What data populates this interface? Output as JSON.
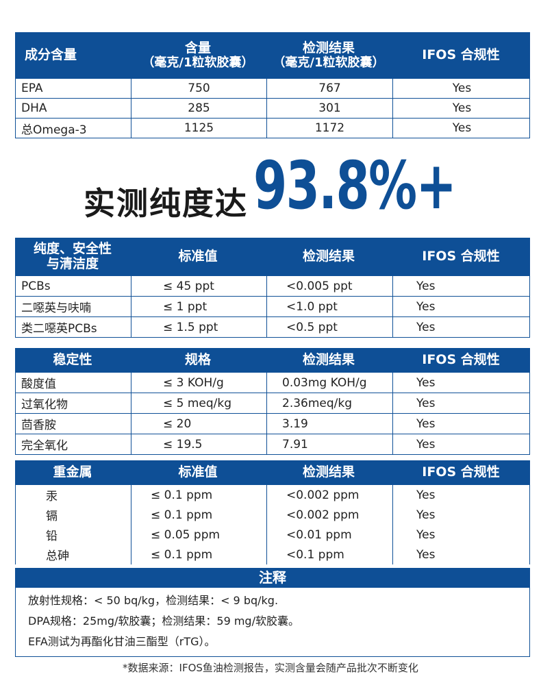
{
  "tables": [
    {
      "headers": [
        "成分含量",
        "含量",
        "（毫克/1粒软胶囊）",
        "检测结果",
        "（毫克/1粒软胶囊）",
        "IFOS 合规性"
      ],
      "rows": [
        [
          "EPA",
          "750",
          "767",
          "Yes"
        ],
        [
          "DHA",
          "285",
          "301",
          "Yes"
        ],
        [
          "总Omega-3",
          "1125",
          "1172",
          "Yes"
        ]
      ]
    },
    {
      "headers": [
        "纯度、安全性",
        "与清洁度",
        "标准值",
        "检测结果",
        "IFOS 合规性"
      ],
      "rows": [
        [
          "PCBs",
          "≤ 45 ppt",
          "<0.005 ppt",
          "Yes"
        ],
        [
          "二噁英与呋喃",
          "≤ 1 ppt",
          "<1.0 ppt",
          "Yes"
        ],
        [
          "类二噁英PCBs",
          "≤ 1.5 ppt",
          "<0.5 ppt",
          "Yes"
        ]
      ]
    },
    {
      "headers": [
        "稳定性",
        "规格",
        "检测结果",
        "IFOS 合规性"
      ],
      "rows": [
        [
          "酸度值",
          "≤ 3 KOH/g",
          "0.03mg KOH/g",
          "Yes"
        ],
        [
          "过氧化物",
          "≤ 5 meq/kg",
          "2.36meq/kg",
          "Yes"
        ],
        [
          "茴香胺",
          "≤ 20",
          "3.19",
          "Yes"
        ],
        [
          "完全氧化",
          "≤ 19.5",
          "7.91",
          "Yes"
        ]
      ]
    },
    {
      "headers": [
        "重金属",
        "标准值",
        "检测结果",
        "IFOS 合规性"
      ],
      "rows": [
        [
          "汞",
          "≤ 0.1 ppm",
          "<0.002 ppm",
          "Yes"
        ],
        [
          "镉",
          "≤ 0.1 ppm",
          "<0.002 ppm",
          "Yes"
        ],
        [
          "铅",
          "≤ 0.05 ppm",
          "<0.01 ppm",
          "Yes"
        ],
        [
          "总砷",
          "≤ 0.1 ppm",
          "<0.1 ppm",
          "Yes"
        ]
      ]
    }
  ],
  "hero": {
    "text": "实测纯度达",
    "number": "93.8%+"
  },
  "notes": {
    "title": "注释",
    "lines": [
      "放射性规格：< 50 bq/kg，检测结果：< 9 bq/kg.",
      "DPA规格：25mg/软胶囊；检测结果：59 mg/软胶囊。",
      "EFA测试为再酯化甘油三酯型（rTG）。"
    ]
  },
  "footer": "*数据来源：IFOS鱼油检测报告，实测含量会随产品批次不断变化",
  "colors": {
    "brand_blue": "#0e4f96"
  }
}
